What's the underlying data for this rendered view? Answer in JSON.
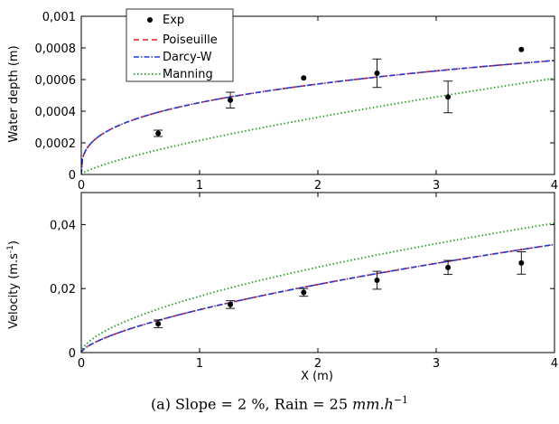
{
  "colors": {
    "exp": "#000000",
    "poiseuille": "#e41a1c",
    "darcy": "#1f3bd6",
    "manning": "#22a022"
  },
  "caption": {
    "prefix": "(a) Slope = 2 %, Rain = 25 ",
    "unit": "mm.h",
    "exponent": "−1"
  },
  "chart_data": [
    {
      "type": "line",
      "ylabel": "Water depth (m)",
      "xlim": [
        0,
        4
      ],
      "ylim": [
        0,
        0.001
      ],
      "xticks": [
        "0",
        "1",
        "2",
        "3",
        "4"
      ],
      "yticks": [
        "0",
        "0,0002",
        "0,0004",
        "0,0006",
        "0,0008",
        "0,001"
      ],
      "legend": {
        "placement": "top-left",
        "entries": [
          "Exp",
          "Poiseuille",
          "Darcy-W",
          "Manning"
        ]
      },
      "series": [
        {
          "name": "Exp",
          "style": "points",
          "x": [
            0.65,
            1.26,
            1.88,
            2.5,
            3.1,
            3.72
          ],
          "y": [
            0.00026,
            0.00047,
            0.00061,
            0.00064,
            0.00049,
            0.00079
          ],
          "err": [
            2e-05,
            5e-05,
            0.0,
            9e-05,
            0.0001,
            0.0
          ]
        },
        {
          "name": "Poiseuille",
          "style": "dashed",
          "model": "power",
          "coef": 0.000454,
          "exponent": 0.333
        },
        {
          "name": "Darcy-W",
          "style": "dashdot",
          "model": "power",
          "coef": 0.000454,
          "exponent": 0.333
        },
        {
          "name": "Manning",
          "style": "dotted",
          "model": "power",
          "coef": 0.000215,
          "exponent": 0.75
        }
      ]
    },
    {
      "type": "line",
      "xlabel": "X (m)",
      "ylabel": "Velocity (m.s",
      "ylabel_exp": "-1",
      "ylabel_close": ")",
      "xlim": [
        0,
        4
      ],
      "ylim": [
        0,
        0.05
      ],
      "xticks": [
        "0",
        "1",
        "2",
        "3",
        "4"
      ],
      "yticks": [
        "0",
        "0,02",
        "0,04"
      ],
      "series": [
        {
          "name": "Exp",
          "style": "points",
          "x": [
            0.65,
            1.26,
            1.88,
            2.5,
            3.1,
            3.72
          ],
          "y": [
            0.009,
            0.015,
            0.0188,
            0.0226,
            0.0266,
            0.028
          ],
          "err": [
            0.0012,
            0.0012,
            0.0012,
            0.0028,
            0.0022,
            0.0035
          ]
        },
        {
          "name": "Poiseuille",
          "style": "dashed",
          "model": "power",
          "coef": 0.0134,
          "exponent": 0.667
        },
        {
          "name": "Darcy-W",
          "style": "dashdot",
          "model": "power",
          "coef": 0.0134,
          "exponent": 0.667
        },
        {
          "name": "Manning",
          "style": "dotted",
          "model": "power",
          "coef": 0.0176,
          "exponent": 0.6
        }
      ]
    }
  ]
}
